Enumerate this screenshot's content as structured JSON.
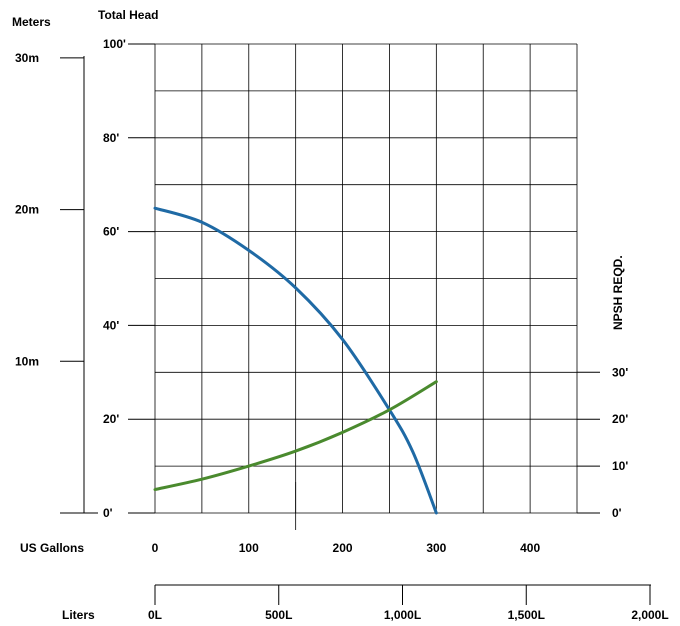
{
  "chart_data": {
    "type": "line",
    "title": "Total Head",
    "left_axis": {
      "label": "Meters",
      "ticks": [
        {
          "value": 0,
          "label": ""
        },
        {
          "value": 10,
          "label": "10m"
        },
        {
          "value": 20,
          "label": "20m"
        },
        {
          "value": 30,
          "label": "30m"
        }
      ]
    },
    "head_axis": {
      "range": [
        0,
        100
      ],
      "ticks": [
        {
          "value": 0,
          "label": "0'"
        },
        {
          "value": 20,
          "label": "20'"
        },
        {
          "value": 40,
          "label": "40'"
        },
        {
          "value": 60,
          "label": "60'"
        },
        {
          "value": 80,
          "label": "80'"
        },
        {
          "value": 100,
          "label": "100'"
        }
      ]
    },
    "npsh_axis": {
      "label": "NPSH REQD.",
      "ticks": [
        {
          "value": 0,
          "label": "0'"
        },
        {
          "value": 10,
          "label": "10'"
        },
        {
          "value": 20,
          "label": "20'"
        },
        {
          "value": 30,
          "label": "30'"
        }
      ]
    },
    "x_axis": {
      "label": "US Gallons",
      "range": [
        0,
        450
      ],
      "ticks": [
        {
          "value": 0,
          "label": "0"
        },
        {
          "value": 100,
          "label": "100"
        },
        {
          "value": 200,
          "label": "200"
        },
        {
          "value": 300,
          "label": "300"
        },
        {
          "value": 400,
          "label": "400"
        }
      ]
    },
    "liters_axis": {
      "label": "Liters",
      "ticks": [
        {
          "value": 0,
          "label": "0L"
        },
        {
          "value": 500,
          "label": "500L"
        },
        {
          "value": 1000,
          "label": "1,000L"
        },
        {
          "value": 1500,
          "label": "1,500L"
        },
        {
          "value": 2000,
          "label": "2,000L"
        }
      ]
    },
    "grid": true,
    "series": [
      {
        "name": "",
        "axis": "head",
        "color": "#1f6aa5",
        "x": [
          0,
          50,
          100,
          150,
          200,
          250,
          275,
          300
        ],
        "y": [
          65,
          62,
          56,
          48,
          37,
          22,
          13,
          0
        ]
      },
      {
        "name": "",
        "axis": "head",
        "color": "#4a8a2e",
        "x": [
          0,
          50,
          100,
          150,
          200,
          250,
          300
        ],
        "y": [
          5,
          7.2,
          10,
          13.2,
          17.2,
          22,
          28
        ]
      }
    ]
  }
}
